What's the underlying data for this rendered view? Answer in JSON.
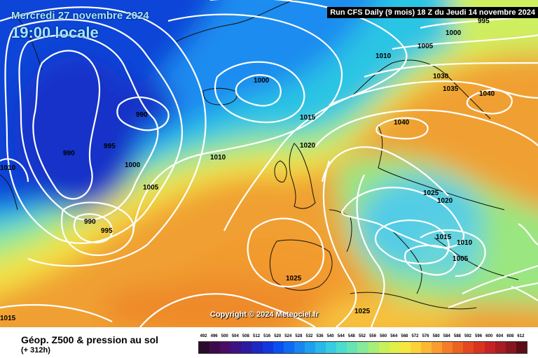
{
  "header": {
    "date": "Mercredi 27 novembre 2024",
    "time": "19:00 locale",
    "run": "Run CFS Daily (9 mois) 18 Z du Jeudi 14 novembre 2024"
  },
  "copyright": "Copyright © 2024 Meteociel.fr",
  "legend": {
    "title": "Géop. Z500 & pression au sol",
    "subtitle": "(+ 312h)",
    "scale_values": [
      "492",
      "496",
      "500",
      "504",
      "508",
      "512",
      "516",
      "520",
      "524",
      "528",
      "532",
      "536",
      "540",
      "544",
      "548",
      "552",
      "556",
      "560",
      "564",
      "568",
      "572",
      "576",
      "580",
      "584",
      "588",
      "592",
      "596",
      "600",
      "604",
      "608",
      "612"
    ],
    "scale_colors": [
      "#2b0b2d",
      "#3d0b4a",
      "#4a0d66",
      "#3f1282",
      "#2c1aa0",
      "#1c28c0",
      "#1038dc",
      "#0a50ee",
      "#0e6af0",
      "#1885f0",
      "#1ea0ee",
      "#28b8ea",
      "#38cce0",
      "#4cdcd0",
      "#66e4b6",
      "#88ea98",
      "#a8ee7a",
      "#c8f05c",
      "#e2ee48",
      "#f6e640",
      "#fcd23a",
      "#fcb834",
      "#fa9c2e",
      "#f47e28",
      "#ec6222",
      "#e4481e",
      "#d83420",
      "#c62424",
      "#a81c22",
      "#881620",
      "#5c0e16"
    ]
  },
  "pressure_labels": [
    "1000",
    "1005",
    "995",
    "1010",
    "1030",
    "1035",
    "1040",
    "1000",
    "990",
    "1015",
    "1040",
    "990",
    "995",
    "1020",
    "1010",
    "1010",
    "1000",
    "1005",
    "1025",
    "1020",
    "990",
    "995",
    "1015",
    "1010",
    "1005",
    "1025",
    "1025",
    "1015"
  ]
}
